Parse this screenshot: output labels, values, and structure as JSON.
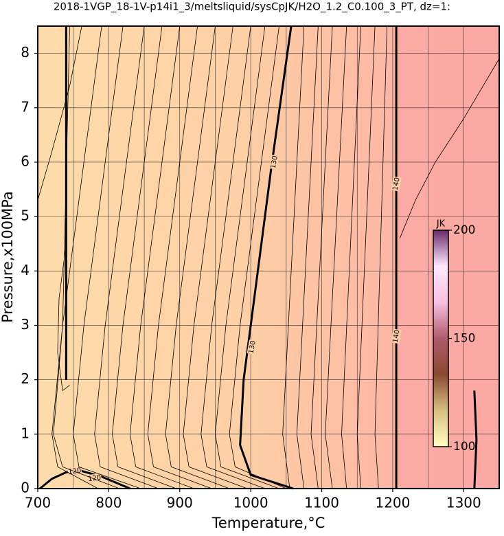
{
  "chart_data": {
    "type": "contour",
    "title": "2018-1VGP_18-1V-p14i1_3/meltsliquid/sysCpJK/H2O_1.2_C0.100_3_PT, dz=1:",
    "x_label": "Temperature,°C",
    "y_label": "Pressure,x100MPa",
    "xlim": [
      700,
      1350
    ],
    "ylim": [
      0,
      8.5
    ],
    "xticks": [
      700,
      800,
      900,
      1000,
      1100,
      1200,
      1300
    ],
    "xgrid": [
      750,
      850,
      950,
      1050,
      1150,
      1250
    ],
    "yticks": [
      0,
      1,
      2,
      3,
      4,
      5,
      6,
      7,
      8
    ],
    "grid": true,
    "contours": [
      {
        "bold": true,
        "x": [
          703,
          720,
          740,
          760,
          790,
          830
        ],
        "y": [
          0,
          0.18,
          0.3,
          0.33,
          0.22,
          0
        ],
        "labels": [
          {
            "text": "120",
            "x": 752,
            "y": 0.32
          },
          {
            "text": "120",
            "x": 780,
            "y": 0.19
          }
        ]
      },
      {
        "bold": true,
        "x": [
          740,
          740
        ],
        "y": [
          2,
          8.5
        ],
        "labels": []
      },
      {
        "bold": true,
        "x": [
          1060,
          1000,
          985,
          990,
          1010,
          1030,
          1057
        ],
        "y": [
          0,
          0.25,
          0.8,
          2,
          4,
          6,
          8.5
        ],
        "labels": [
          {
            "text": "130",
            "x": 1002,
            "y": 2.6
          },
          {
            "text": "130",
            "x": 1033,
            "y": 6
          }
        ]
      },
      {
        "bold": true,
        "x": [
          1205,
          1205
        ],
        "y": [
          0,
          8.5
        ],
        "labels": [
          {
            "text": "140",
            "x": 1205,
            "y": 2.8
          },
          {
            "text": "140",
            "x": 1205,
            "y": 5.6
          }
        ]
      },
      {
        "bold": true,
        "x": [
          1315,
          1318,
          1315
        ],
        "y": [
          0,
          0.9,
          1.8
        ],
        "labels": []
      },
      {
        "x": [
          745,
          735,
          720,
          728,
          785
        ],
        "y": [
          8.5,
          3,
          1,
          0.4,
          0
        ]
      },
      {
        "x": [
          790,
          735,
          722,
          735,
          815
        ],
        "y": [
          8.5,
          3,
          1,
          0.4,
          0
        ]
      },
      {
        "x": [
          820,
          765,
          750,
          758,
          845
        ],
        "y": [
          8.5,
          3,
          1,
          0.4,
          0
        ]
      },
      {
        "x": [
          850,
          795,
          780,
          788,
          870
        ],
        "y": [
          8.5,
          3,
          1,
          0.4,
          0
        ]
      },
      {
        "x": [
          875,
          820,
          805,
          813,
          895
        ],
        "y": [
          8.5,
          3,
          1,
          0.4,
          0
        ]
      },
      {
        "x": [
          900,
          845,
          830,
          838,
          920
        ],
        "y": [
          8.5,
          3,
          1,
          0.4,
          0
        ]
      },
      {
        "x": [
          925,
          870,
          855,
          863,
          945
        ],
        "y": [
          8.5,
          3,
          1,
          0.4,
          0
        ]
      },
      {
        "x": [
          950,
          895,
          880,
          888,
          970
        ],
        "y": [
          8.5,
          3,
          1,
          0.4,
          0
        ]
      },
      {
        "x": [
          975,
          920,
          905,
          913,
          995
        ],
        "y": [
          8.5,
          3,
          1,
          0.4,
          0
        ]
      },
      {
        "x": [
          1000,
          945,
          930,
          938,
          1020
        ],
        "y": [
          8.5,
          3,
          1,
          0.4,
          0
        ]
      },
      {
        "x": [
          1020,
          965,
          950,
          958,
          1040
        ],
        "y": [
          8.5,
          3,
          1,
          0.4,
          0
        ]
      },
      {
        "x": [
          1040,
          985,
          970,
          978,
          1050
        ],
        "y": [
          8.5,
          3,
          1,
          0.4,
          0
        ]
      },
      {
        "x": [
          1075,
          1045,
          1055
        ],
        "y": [
          8.5,
          1,
          0
        ]
      },
      {
        "x": [
          1095,
          1065,
          1075
        ],
        "y": [
          8.5,
          1,
          0
        ]
      },
      {
        "x": [
          1115,
          1085,
          1095
        ],
        "y": [
          8.5,
          1,
          0
        ]
      },
      {
        "x": [
          1135,
          1105,
          1115
        ],
        "y": [
          8.5,
          1,
          0
        ]
      },
      {
        "x": [
          1155,
          1128,
          1135
        ],
        "y": [
          8.5,
          1,
          0
        ]
      },
      {
        "x": [
          1175,
          1150,
          1155
        ],
        "y": [
          8.5,
          1,
          0
        ]
      },
      {
        "x": [
          1192,
          1175,
          1180
        ],
        "y": [
          8.5,
          1,
          0
        ]
      },
      {
        "x": [
          1210,
          1232,
          1260,
          1300,
          1350
        ],
        "y": [
          4.6,
          5.3,
          6.0,
          6.8,
          7.9
        ]
      },
      {
        "x": [
          700,
          720,
          745,
          762
        ],
        "y": [
          5.3,
          6.2,
          7.4,
          8.5
        ]
      },
      {
        "x": [
          740,
          730,
          728,
          735,
          745
        ],
        "y": [
          4.5,
          3.5,
          2.5,
          1.8,
          1.9
        ]
      }
    ],
    "colorbar": {
      "label": "JK",
      "lim": [
        100,
        200
      ],
      "ticks": [
        100,
        150,
        200
      ],
      "colors": [
        "#ffffc0",
        "#d8c080",
        "#8a4a30",
        "#b05a6a",
        "#f8c0e0",
        "#ffe8ff",
        "#6a2a6a"
      ]
    }
  }
}
